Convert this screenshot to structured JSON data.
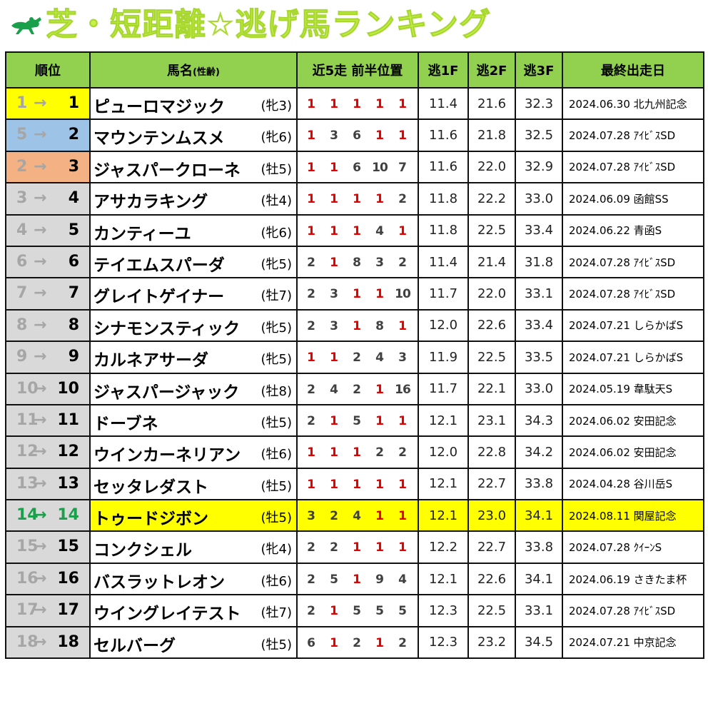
{
  "title": "芝・短距離☆逃げ馬ランキング",
  "colors": {
    "title": "#c6f24a",
    "header": "#92d050",
    "highlight": "#ffff00",
    "red": "#e00000",
    "rank1": "#ffff00",
    "rank2": "#9dc3e6",
    "rank3": "#f4b183",
    "rank_default": "#d9d9d9"
  },
  "headers": {
    "rank": "順位",
    "name": "馬名",
    "name_sub": "(性齢)",
    "pos": "近5走 前半位置",
    "f1": "逃1F",
    "f2": "逃2F",
    "f3": "逃3F",
    "last": "最終出走日"
  },
  "arrow": "→",
  "rows": [
    {
      "prev": "1",
      "cur": "1",
      "name": "ピューロマジック",
      "sex": "(牝3)",
      "pos": [
        "1",
        "1",
        "1",
        "1",
        "1"
      ],
      "f1": "11.4",
      "f2": "21.6",
      "f3": "32.3",
      "last": "2024.06.30 北九州記念"
    },
    {
      "prev": "5",
      "cur": "2",
      "name": "マウンテンムスメ",
      "sex": "(牝6)",
      "pos": [
        "1",
        "3",
        "6",
        "1",
        "1"
      ],
      "f1": "11.6",
      "f2": "21.8",
      "f3": "32.5",
      "last": "2024.07.28 ｱｲﾋﾞｽSD"
    },
    {
      "prev": "2",
      "cur": "3",
      "name": "ジャスパークローネ",
      "sex": "(牡5)",
      "pos": [
        "1",
        "1",
        "6",
        "10",
        "7"
      ],
      "f1": "11.6",
      "f2": "22.0",
      "f3": "32.9",
      "last": "2024.07.28 ｱｲﾋﾞｽSD"
    },
    {
      "prev": "3",
      "cur": "4",
      "name": "アサカラキング",
      "sex": "(牡4)",
      "pos": [
        "1",
        "1",
        "1",
        "1",
        "2"
      ],
      "f1": "11.8",
      "f2": "22.2",
      "f3": "33.0",
      "last": "2024.06.09 函館SS"
    },
    {
      "prev": "4",
      "cur": "5",
      "name": "カンティーユ",
      "sex": "(牝6)",
      "pos": [
        "1",
        "1",
        "1",
        "4",
        "1"
      ],
      "f1": "11.8",
      "f2": "22.5",
      "f3": "33.4",
      "last": "2024.06.22 青函S"
    },
    {
      "prev": "6",
      "cur": "6",
      "name": "テイエムスパーダ",
      "sex": "(牝5)",
      "pos": [
        "2",
        "1",
        "8",
        "3",
        "2"
      ],
      "f1": "11.4",
      "f2": "21.4",
      "f3": "31.8",
      "last": "2024.07.28 ｱｲﾋﾞｽSD"
    },
    {
      "prev": "7",
      "cur": "7",
      "name": "グレイトゲイナー",
      "sex": "(牡7)",
      "pos": [
        "2",
        "3",
        "1",
        "1",
        "10"
      ],
      "f1": "11.7",
      "f2": "22.0",
      "f3": "33.1",
      "last": "2024.07.28 ｱｲﾋﾞｽSD"
    },
    {
      "prev": "8",
      "cur": "8",
      "name": "シナモンスティック",
      "sex": "(牝5)",
      "pos": [
        "2",
        "3",
        "1",
        "8",
        "1"
      ],
      "f1": "12.0",
      "f2": "22.6",
      "f3": "33.4",
      "last": "2024.07.21 しらかばS"
    },
    {
      "prev": "9",
      "cur": "9",
      "name": "カルネアサーダ",
      "sex": "(牝5)",
      "pos": [
        "1",
        "1",
        "2",
        "4",
        "3"
      ],
      "f1": "11.9",
      "f2": "22.5",
      "f3": "33.5",
      "last": "2024.07.21 しらかばS"
    },
    {
      "prev": "10",
      "cur": "10",
      "name": "ジャスパージャック",
      "sex": "(牡8)",
      "pos": [
        "2",
        "4",
        "2",
        "1",
        "16"
      ],
      "f1": "11.7",
      "f2": "22.1",
      "f3": "33.0",
      "last": "2024.05.19 韋駄天S"
    },
    {
      "prev": "11",
      "cur": "11",
      "name": "ドーブネ",
      "sex": "(牡5)",
      "pos": [
        "2",
        "1",
        "5",
        "1",
        "1"
      ],
      "f1": "12.1",
      "f2": "23.1",
      "f3": "34.3",
      "last": "2024.06.02 安田記念"
    },
    {
      "prev": "12",
      "cur": "12",
      "name": "ウインカーネリアン",
      "sex": "(牡6)",
      "pos": [
        "1",
        "1",
        "1",
        "2",
        "2"
      ],
      "f1": "12.0",
      "f2": "22.8",
      "f3": "34.2",
      "last": "2024.06.02 安田記念"
    },
    {
      "prev": "13",
      "cur": "13",
      "name": "セッタレダスト",
      "sex": "(牡5)",
      "pos": [
        "1",
        "1",
        "1",
        "1",
        "1"
      ],
      "f1": "12.1",
      "f2": "22.7",
      "f3": "33.8",
      "last": "2024.04.28 谷川岳S"
    },
    {
      "prev": "14",
      "cur": "14",
      "name": "トゥードジボン",
      "sex": "(牡5)",
      "pos": [
        "3",
        "2",
        "4",
        "1",
        "1"
      ],
      "f1": "12.1",
      "f2": "23.0",
      "f3": "34.1",
      "last": "2024.08.11 関屋記念"
    },
    {
      "prev": "15",
      "cur": "15",
      "name": "コンクシェル",
      "sex": "(牝4)",
      "pos": [
        "2",
        "2",
        "1",
        "1",
        "1"
      ],
      "f1": "12.2",
      "f2": "22.7",
      "f3": "33.8",
      "last": "2024.07.28 ｸｲｰﾝS"
    },
    {
      "prev": "16",
      "cur": "16",
      "name": "バスラットレオン",
      "sex": "(牡6)",
      "pos": [
        "2",
        "5",
        "1",
        "9",
        "4"
      ],
      "f1": "12.1",
      "f2": "22.6",
      "f3": "34.1",
      "last": "2024.06.19 さきたま杯"
    },
    {
      "prev": "17",
      "cur": "17",
      "name": "ウイングレイテスト",
      "sex": "(牡7)",
      "pos": [
        "2",
        "1",
        "5",
        "5",
        "5"
      ],
      "f1": "12.3",
      "f2": "22.5",
      "f3": "33.1",
      "last": "2024.07.28 ｱｲﾋﾞｽSD"
    },
    {
      "prev": "18",
      "cur": "18",
      "name": "セルバーグ",
      "sex": "(牡5)",
      "pos": [
        "6",
        "1",
        "2",
        "1",
        "2"
      ],
      "f1": "12.3",
      "f2": "23.2",
      "f3": "34.5",
      "last": "2024.07.21 中京記念"
    }
  ],
  "highlight_row": 13
}
